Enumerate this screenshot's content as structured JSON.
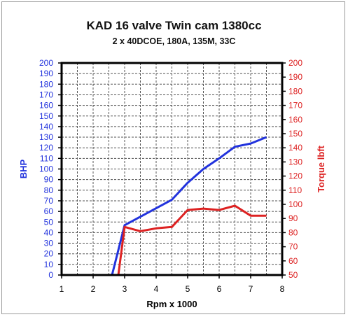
{
  "chart_data": {
    "type": "line",
    "title": "KAD 16 valve Twin cam 1380cc",
    "subtitle": "2 x 40DCOE, 180A, 135M, 33C",
    "xlabel": "Rpm x 1000",
    "ylabel": "BHP",
    "ylabel_right": "Torque lbft",
    "xlim": [
      1,
      8
    ],
    "ylim": [
      0,
      200
    ],
    "ylim_right": [
      50,
      200
    ],
    "x_ticks": [
      "1",
      "2",
      "3",
      "4",
      "5",
      "6",
      "7",
      "8"
    ],
    "y_ticks": [
      "0",
      "10",
      "20",
      "30",
      "40",
      "50",
      "60",
      "70",
      "80",
      "90",
      "100",
      "110",
      "120",
      "130",
      "140",
      "150",
      "160",
      "170",
      "180",
      "190",
      "200"
    ],
    "y_ticks_right": [
      "50",
      "60",
      "70",
      "80",
      "90",
      "100",
      "110",
      "120",
      "130",
      "140",
      "150",
      "160",
      "170",
      "180",
      "190",
      "200"
    ],
    "grid": true,
    "series": [
      {
        "name": "BHP",
        "axis": "left",
        "color": "#2233dd",
        "x": [
          2.4,
          2.6,
          3.0,
          3.5,
          4.0,
          4.5,
          5.0,
          5.5,
          6.0,
          6.5,
          7.0,
          7.5
        ],
        "y": [
          0,
          0,
          47,
          55,
          63,
          71,
          87,
          100,
          110,
          121,
          124,
          130
        ]
      },
      {
        "name": "Torque lbft",
        "axis": "right",
        "color": "#dd2222",
        "x": [
          2.6,
          2.8,
          3.0,
          3.5,
          4.0,
          4.5,
          5.0,
          5.5,
          6.0,
          6.5,
          7.0,
          7.5
        ],
        "y": [
          50,
          50,
          84,
          81,
          83,
          84,
          96,
          97,
          96,
          99,
          92,
          92
        ]
      }
    ]
  }
}
